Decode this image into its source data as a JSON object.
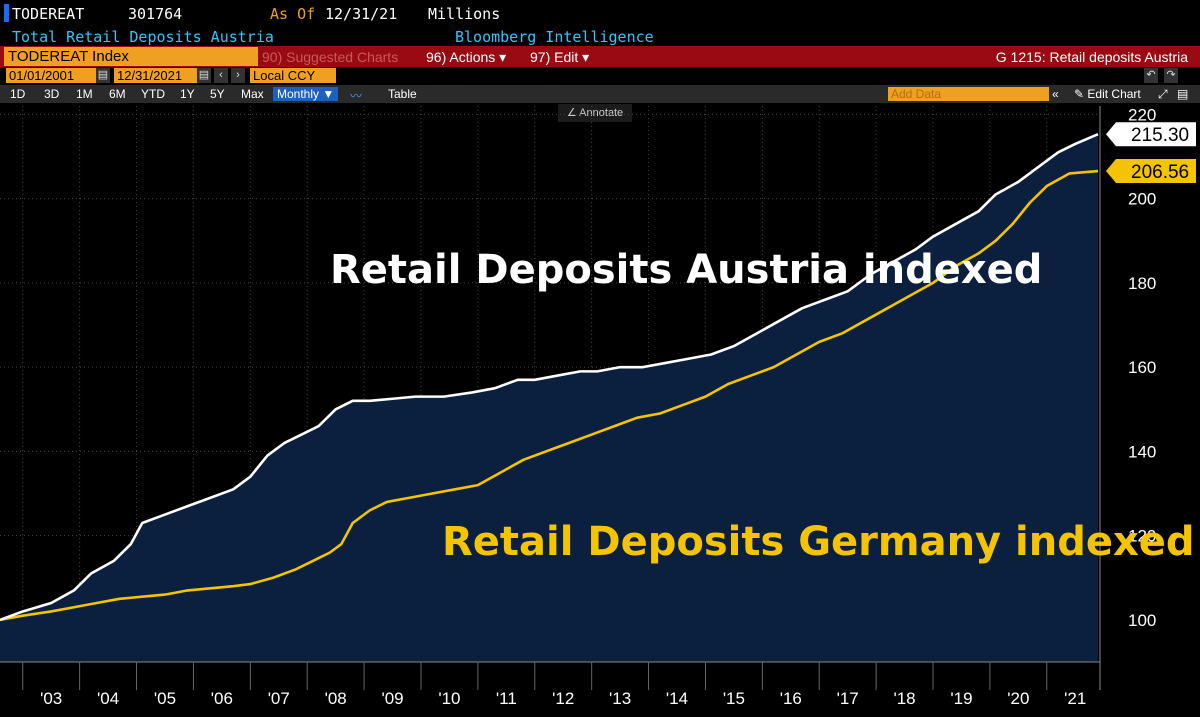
{
  "header": {
    "ticker": "TODEREAT",
    "code": "301764",
    "as_of_label": "As Of",
    "as_of_date": "12/31/21",
    "units": "Millions",
    "description": "Total Retail Deposits Austria",
    "source": "Bloomberg Intelligence"
  },
  "command_bar": {
    "index_field": "TODEREAT Index",
    "suggested": "90) Suggested Charts",
    "actions": "96) Actions ▾",
    "edit": "97) Edit ▾",
    "title": "G 1215: Retail deposits Austria"
  },
  "date_bar": {
    "start": "01/01/2001",
    "end": "12/31/2021",
    "currency": "Local CCY"
  },
  "toolbar": {
    "ranges": [
      "1D",
      "3D",
      "1M",
      "6M",
      "YTD",
      "1Y",
      "5Y",
      "Max"
    ],
    "frequency": "Monthly ▼",
    "table": "Table",
    "add_data_placeholder": "Add Data",
    "edit_chart": "Edit Chart"
  },
  "annotate_label": "Annotate",
  "colors": {
    "austria": "#ffffff",
    "germany": "#f5c400",
    "fill": "#0b1f3e",
    "background": "#000000"
  },
  "chart_data": {
    "type": "line",
    "x_tick_labels": [
      "'03",
      "'04",
      "'05",
      "'06",
      "'07",
      "'08",
      "'09",
      "'10",
      "'11",
      "'12",
      "'13",
      "'14",
      "'15",
      "'16",
      "'17",
      "'18",
      "'19",
      "'20",
      "'21"
    ],
    "x_range": [
      2002.6,
      2021.9
    ],
    "ylim": [
      90,
      222
    ],
    "y_ticks": [
      100,
      120,
      140,
      160,
      180,
      200,
      220
    ],
    "series": [
      {
        "name": "Retail Deposits Austria indexed",
        "color": "#ffffff",
        "last_value": "215.30",
        "points": [
          [
            2002.6,
            100
          ],
          [
            2003.0,
            102
          ],
          [
            2003.5,
            104
          ],
          [
            2003.9,
            107
          ],
          [
            2004.2,
            111
          ],
          [
            2004.6,
            114
          ],
          [
            2004.9,
            118
          ],
          [
            2005.1,
            123
          ],
          [
            2005.5,
            125
          ],
          [
            2005.9,
            127
          ],
          [
            2006.3,
            129
          ],
          [
            2006.7,
            131
          ],
          [
            2007.0,
            134
          ],
          [
            2007.3,
            139
          ],
          [
            2007.6,
            142
          ],
          [
            2007.9,
            144
          ],
          [
            2008.2,
            146
          ],
          [
            2008.5,
            150
          ],
          [
            2008.8,
            152
          ],
          [
            2009.1,
            152
          ],
          [
            2009.5,
            152.5
          ],
          [
            2009.9,
            153
          ],
          [
            2010.4,
            153
          ],
          [
            2010.9,
            154
          ],
          [
            2011.3,
            155
          ],
          [
            2011.7,
            157
          ],
          [
            2012.0,
            157
          ],
          [
            2012.4,
            158
          ],
          [
            2012.8,
            159
          ],
          [
            2013.1,
            159
          ],
          [
            2013.5,
            160
          ],
          [
            2013.9,
            160
          ],
          [
            2014.3,
            161
          ],
          [
            2014.7,
            162
          ],
          [
            2015.1,
            163
          ],
          [
            2015.5,
            165
          ],
          [
            2015.9,
            168
          ],
          [
            2016.3,
            171
          ],
          [
            2016.7,
            174
          ],
          [
            2017.1,
            176
          ],
          [
            2017.5,
            178
          ],
          [
            2017.9,
            182
          ],
          [
            2018.3,
            185
          ],
          [
            2018.7,
            188
          ],
          [
            2019.0,
            191
          ],
          [
            2019.4,
            194
          ],
          [
            2019.8,
            197
          ],
          [
            2020.1,
            201
          ],
          [
            2020.5,
            204
          ],
          [
            2020.9,
            208
          ],
          [
            2021.2,
            211
          ],
          [
            2021.5,
            213
          ],
          [
            2021.9,
            215.3
          ]
        ]
      },
      {
        "name": "Retail Deposits Germany indexed",
        "color": "#f5c400",
        "last_value": "206.56",
        "points": [
          [
            2002.6,
            100
          ],
          [
            2003.0,
            101
          ],
          [
            2003.5,
            102
          ],
          [
            2003.9,
            103
          ],
          [
            2004.3,
            104
          ],
          [
            2004.7,
            105
          ],
          [
            2005.1,
            105.5
          ],
          [
            2005.5,
            106
          ],
          [
            2005.9,
            107
          ],
          [
            2006.3,
            107.5
          ],
          [
            2006.7,
            108
          ],
          [
            2007.0,
            108.5
          ],
          [
            2007.4,
            110
          ],
          [
            2007.8,
            112
          ],
          [
            2008.1,
            114
          ],
          [
            2008.4,
            116
          ],
          [
            2008.6,
            118
          ],
          [
            2008.8,
            123
          ],
          [
            2009.1,
            126
          ],
          [
            2009.4,
            128
          ],
          [
            2009.8,
            129
          ],
          [
            2010.2,
            130
          ],
          [
            2010.6,
            131
          ],
          [
            2011.0,
            132
          ],
          [
            2011.4,
            135
          ],
          [
            2011.8,
            138
          ],
          [
            2012.2,
            140
          ],
          [
            2012.6,
            142
          ],
          [
            2013.0,
            144
          ],
          [
            2013.4,
            146
          ],
          [
            2013.8,
            148
          ],
          [
            2014.2,
            149
          ],
          [
            2014.6,
            151
          ],
          [
            2015.0,
            153
          ],
          [
            2015.4,
            156
          ],
          [
            2015.8,
            158
          ],
          [
            2016.2,
            160
          ],
          [
            2016.6,
            163
          ],
          [
            2017.0,
            166
          ],
          [
            2017.4,
            168
          ],
          [
            2017.8,
            171
          ],
          [
            2018.2,
            174
          ],
          [
            2018.6,
            177
          ],
          [
            2019.0,
            180
          ],
          [
            2019.4,
            184
          ],
          [
            2019.8,
            187
          ],
          [
            2020.1,
            190
          ],
          [
            2020.4,
            194
          ],
          [
            2020.7,
            199
          ],
          [
            2021.0,
            203
          ],
          [
            2021.4,
            206
          ],
          [
            2021.9,
            206.56
          ]
        ]
      }
    ]
  }
}
